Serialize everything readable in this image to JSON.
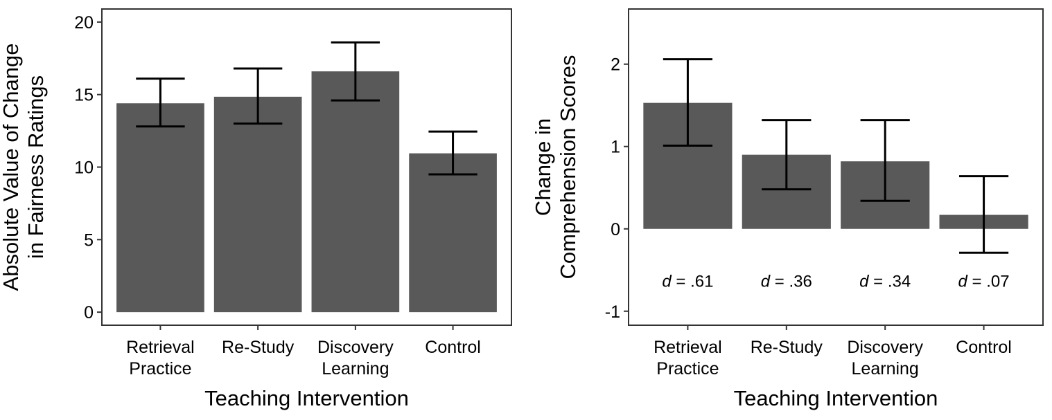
{
  "chart_data": [
    {
      "type": "bar",
      "title": "",
      "xlabel": "Teaching Intervention",
      "ylabel_lines": [
        "Absolute Value of Change",
        "in Fairness Ratings"
      ],
      "categories": [
        [
          "Retrieval",
          "Practice"
        ],
        [
          "Re-Study"
        ],
        [
          "Discovery",
          "Learning"
        ],
        [
          "Control"
        ]
      ],
      "values": [
        14.4,
        14.85,
        16.6,
        10.95
      ],
      "error_low": [
        12.8,
        13.0,
        14.6,
        9.5
      ],
      "error_high": [
        16.1,
        16.8,
        18.6,
        12.45
      ],
      "yticks": [
        0,
        5,
        10,
        15,
        20
      ],
      "ylim": [
        -0.9,
        20.9
      ],
      "bar_color": "#595959",
      "error_color": "#000000",
      "grid": false
    },
    {
      "type": "bar",
      "title": "",
      "xlabel": "Teaching Intervention",
      "ylabel_lines": [
        "Change in",
        "Comprehension Scores"
      ],
      "categories": [
        [
          "Retrieval",
          "Practice"
        ],
        [
          "Re-Study"
        ],
        [
          "Discovery",
          "Learning"
        ],
        [
          "Control"
        ]
      ],
      "values": [
        1.53,
        0.9,
        0.82,
        0.17
      ],
      "error_low": [
        1.01,
        0.48,
        0.34,
        -0.29
      ],
      "error_high": [
        2.06,
        1.32,
        1.32,
        0.64
      ],
      "annotations": [
        ".61",
        ".36",
        ".34",
        ".07"
      ],
      "annotation_prefix": "d",
      "annotation_y": -0.63,
      "yticks": [
        -1,
        0,
        1,
        2
      ],
      "ylim": [
        -1.17,
        2.67
      ],
      "bar_color": "#595959",
      "error_color": "#000000",
      "grid": false
    }
  ]
}
